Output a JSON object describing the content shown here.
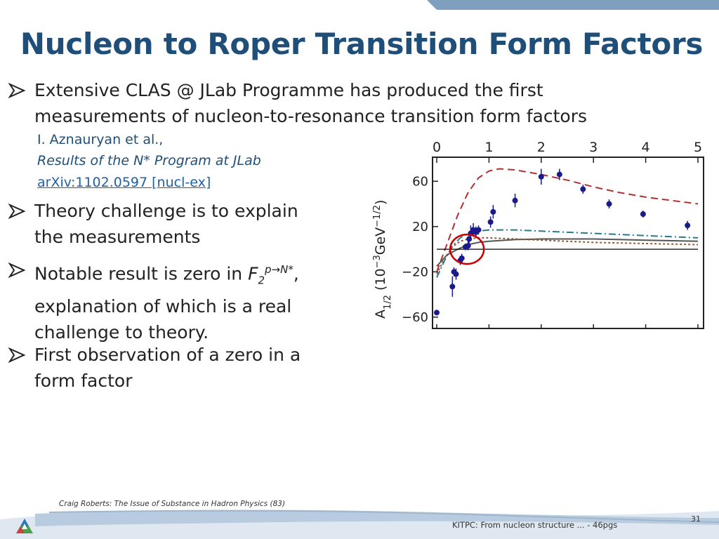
{
  "title": "Nucleon to Roper Transition Form Factors",
  "bullets": {
    "b1": "Extensive CLAS @ JLab Programme has produced the first measurements of nucleon-to-resonance transition form factors",
    "b2": "Theory challenge is to explain the measurements",
    "b3_prefix": "Notable result is zero in ",
    "b3_F": "F",
    "b3_sub": "2",
    "b3_sup": "p→N*",
    "b3_suffix": ", explanation of which is a real challenge to theory.",
    "b4": "First observation of a zero in a form factor"
  },
  "reference": {
    "authors": "I. Aznauryan et al.,",
    "title": "Results of the N* Program at JLab",
    "arxiv": "arXiv:1102.0597 [nucl-ex]"
  },
  "footer": {
    "left": "Craig Roberts: The Issue of Substance in Hadron Physics (83)",
    "right": "KITPC: From nucleon structure ... - 46pgs",
    "page": "31"
  },
  "colors": {
    "title": "#1f4e79",
    "accent_bar": "#7f9fbf",
    "data_points": "#1a1a8c",
    "dashed_curve": "#b03030",
    "highlight_circle": "#cc0000"
  },
  "chart_data": {
    "type": "scatter",
    "xlabel": "",
    "ylabel": "A1/2 (10⁻³GeV⁻¹ᐟ²)",
    "ylabel_main": "A",
    "ylabel_sub": "1/2",
    "ylabel_rest": "(10",
    "ylabel_exp1": "−3",
    "ylabel_gev": "GeV",
    "ylabel_exp2": "−1/2",
    "ylabel_close": ")",
    "xlim": [
      0,
      5
    ],
    "ylim": [
      -70,
      80
    ],
    "x_ticks": [
      "0",
      "1",
      "2",
      "3",
      "4",
      "5"
    ],
    "y_ticks": [
      "60",
      "20",
      "−20",
      "−60"
    ],
    "series": [
      {
        "points": [
          {
            "x": 0.0,
            "y": -56,
            "err": 2
          },
          {
            "x": 0.3,
            "y": -33,
            "err": 9
          },
          {
            "x": 0.33,
            "y": -20,
            "err": 4
          },
          {
            "x": 0.37,
            "y": -22,
            "err": 5
          },
          {
            "x": 0.45,
            "y": -10,
            "err": 4
          },
          {
            "x": 0.48,
            "y": -8,
            "err": 4
          },
          {
            "x": 0.55,
            "y": 2,
            "err": 3
          },
          {
            "x": 0.6,
            "y": 3,
            "err": 4
          },
          {
            "x": 0.62,
            "y": 9,
            "err": 6
          },
          {
            "x": 0.65,
            "y": 14,
            "err": 7
          },
          {
            "x": 0.7,
            "y": 17,
            "err": 6
          },
          {
            "x": 0.75,
            "y": 15,
            "err": 5
          },
          {
            "x": 0.8,
            "y": 17,
            "err": 4
          },
          {
            "x": 1.03,
            "y": 24,
            "err": 5
          },
          {
            "x": 1.08,
            "y": 33,
            "err": 6
          },
          {
            "x": 1.5,
            "y": 43,
            "err": 6
          },
          {
            "x": 2.0,
            "y": 64,
            "err": 7
          },
          {
            "x": 2.35,
            "y": 66,
            "err": 5
          },
          {
            "x": 2.8,
            "y": 53,
            "err": 4
          },
          {
            "x": 3.3,
            "y": 40,
            "err": 4
          },
          {
            "x": 3.95,
            "y": 31,
            "err": 3
          },
          {
            "x": 4.8,
            "y": 21,
            "err": 4
          }
        ]
      }
    ],
    "curves": [
      {
        "style": "dashed",
        "color": "#b03030",
        "points": [
          [
            0.0,
            -20
          ],
          [
            0.2,
            5
          ],
          [
            0.4,
            30
          ],
          [
            0.6,
            50
          ],
          [
            0.8,
            63
          ],
          [
            1.0,
            69
          ],
          [
            1.2,
            71
          ],
          [
            1.5,
            70
          ],
          [
            2.0,
            66
          ],
          [
            2.5,
            61
          ],
          [
            3.0,
            55
          ],
          [
            3.5,
            50
          ],
          [
            4.0,
            46
          ],
          [
            4.5,
            43
          ],
          [
            5.0,
            40
          ]
        ]
      },
      {
        "style": "dashdot",
        "color": "#2a7a8a",
        "points": [
          [
            0.0,
            -25
          ],
          [
            0.15,
            -10
          ],
          [
            0.3,
            3
          ],
          [
            0.45,
            10
          ],
          [
            0.6,
            14
          ],
          [
            0.8,
            16
          ],
          [
            1.0,
            17
          ],
          [
            1.5,
            17
          ],
          [
            2.0,
            16
          ],
          [
            3.0,
            14
          ],
          [
            4.0,
            12
          ],
          [
            5.0,
            10
          ]
        ]
      },
      {
        "style": "solid",
        "color": "#555555",
        "points": [
          [
            0.0,
            -15
          ],
          [
            0.2,
            -5
          ],
          [
            0.4,
            0
          ],
          [
            0.6,
            4
          ],
          [
            0.8,
            6
          ],
          [
            1.0,
            7
          ],
          [
            1.5,
            8.5
          ],
          [
            2.0,
            9
          ],
          [
            3.0,
            9
          ],
          [
            4.0,
            8
          ],
          [
            5.0,
            7
          ]
        ]
      },
      {
        "style": "dotted",
        "color": "#8b5a3c",
        "points": [
          [
            0.0,
            -22
          ],
          [
            0.15,
            -8
          ],
          [
            0.3,
            2
          ],
          [
            0.45,
            7
          ],
          [
            0.6,
            9
          ],
          [
            0.8,
            10
          ],
          [
            1.0,
            10
          ],
          [
            1.5,
            9
          ],
          [
            2.0,
            8
          ],
          [
            3.0,
            6
          ],
          [
            4.0,
            5
          ],
          [
            5.0,
            4
          ]
        ]
      },
      {
        "style": "zero",
        "color": "#000000",
        "points": [
          [
            0,
            0
          ],
          [
            5,
            0
          ]
        ]
      }
    ],
    "highlight": {
      "x": 0.58,
      "y": 0
    }
  }
}
